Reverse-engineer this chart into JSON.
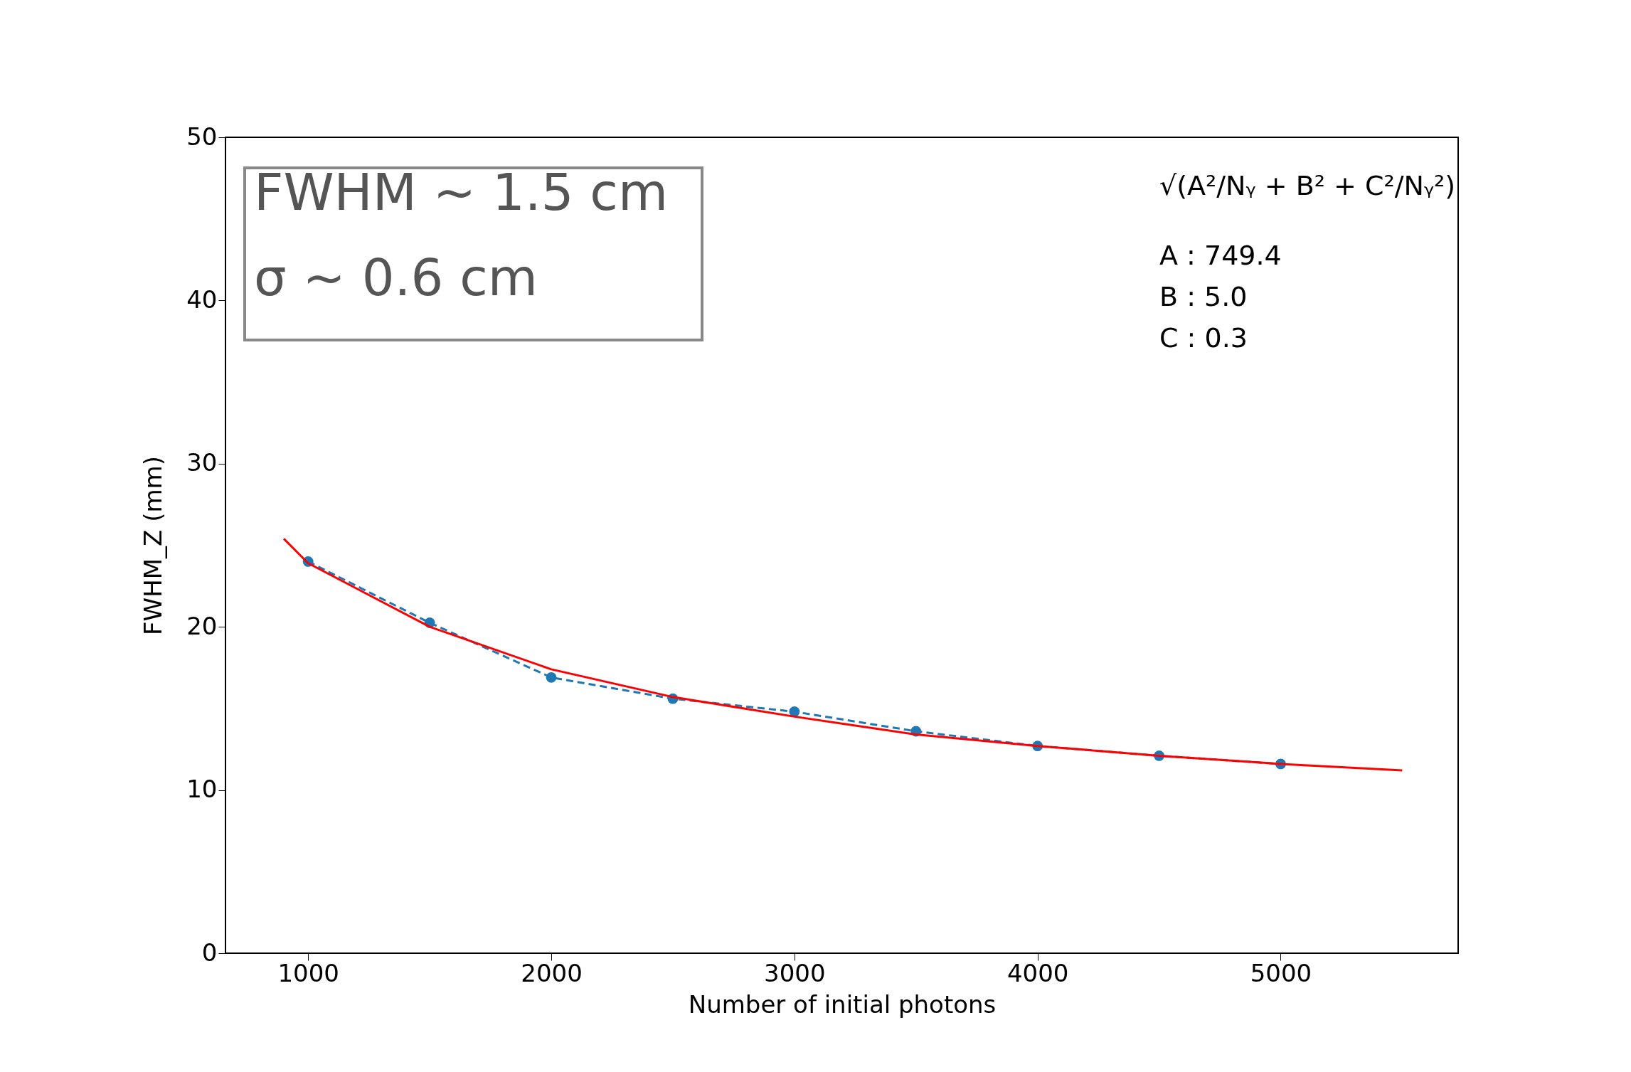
{
  "chart_data": {
    "type": "line",
    "xlabel": "Number of initial photons",
    "ylabel": "FWHM_Z (mm)",
    "xlim": [
      660,
      5730
    ],
    "ylim": [
      0,
      50
    ],
    "xticks": [
      1000,
      2000,
      3000,
      4000,
      5000
    ],
    "yticks": [
      0,
      10,
      20,
      30,
      40,
      50
    ],
    "grid": false,
    "series": [
      {
        "color": "#1f77b4",
        "marker": "circle",
        "line_style": "dashed",
        "x": [
          1000,
          1500,
          2000,
          2500,
          3000,
          3500,
          4000,
          4500,
          5000
        ],
        "values": [
          24.0,
          20.25,
          16.9,
          15.6,
          14.8,
          13.6,
          12.7,
          12.1,
          11.6
        ]
      },
      {
        "color": "#ff0000",
        "marker": "none",
        "line_style": "solid",
        "x": [
          900,
          1000,
          1500,
          2000,
          2500,
          3000,
          3500,
          4000,
          4500,
          5000,
          5500
        ],
        "values": [
          25.4,
          23.9,
          20.0,
          17.4,
          15.7,
          14.5,
          13.4,
          12.7,
          12.1,
          11.6,
          11.2
        ]
      }
    ],
    "annotations": [
      "FWHM ~ 1.5 cm",
      "σ ~ 0.6 cm",
      "√(A²/Nᵧ + B² + C²/Nᵧ²)",
      "A : 749.4",
      "B : 5.0",
      "C : 0.3"
    ]
  }
}
